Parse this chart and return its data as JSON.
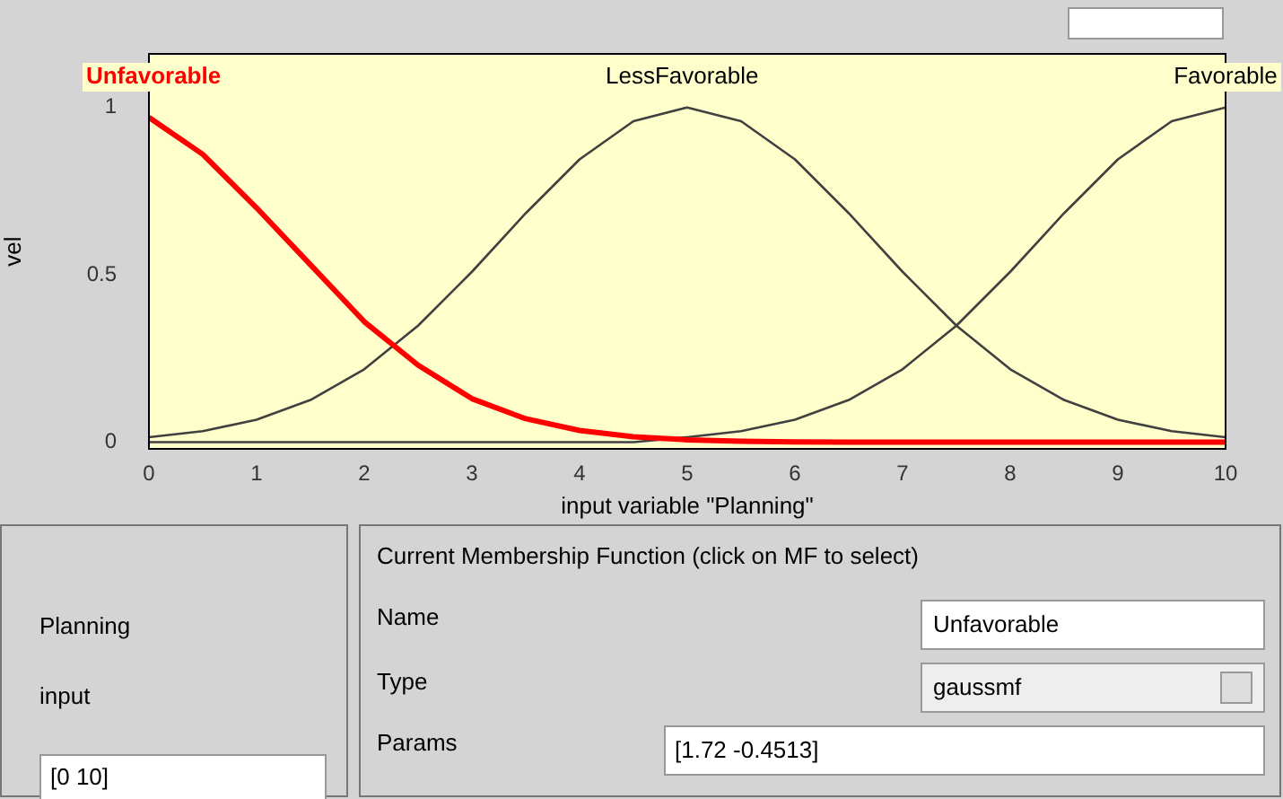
{
  "chart_data": {
    "type": "line",
    "xlabel": "input variable \"Planning\"",
    "ylabel": "vel",
    "x": [
      0,
      0.5,
      1,
      1.5,
      2,
      2.5,
      3,
      3.5,
      4,
      4.5,
      5,
      5.5,
      6,
      6.5,
      7,
      7.5,
      8,
      8.5,
      9,
      9.5,
      10
    ],
    "series": [
      {
        "name": "Unfavorable",
        "color": "#ff0000",
        "values": [
          0.97,
          0.86,
          0.7,
          0.53,
          0.36,
          0.23,
          0.13,
          0.07,
          0.035,
          0.016,
          0.007,
          0.003,
          0.001,
          0,
          0,
          0,
          0,
          0,
          0,
          0,
          0
        ]
      },
      {
        "name": "LessFavorable",
        "color": "#404040",
        "values": [
          0.015,
          0.033,
          0.067,
          0.126,
          0.218,
          0.348,
          0.509,
          0.684,
          0.845,
          0.959,
          1,
          0.959,
          0.845,
          0.684,
          0.509,
          0.348,
          0.218,
          0.126,
          0.067,
          0.033,
          0.015
        ]
      },
      {
        "name": "Favorable",
        "color": "#404040",
        "values": [
          0,
          0,
          0,
          0,
          0,
          0,
          0,
          0,
          0,
          0,
          0.015,
          0.033,
          0.067,
          0.126,
          0.218,
          0.348,
          0.509,
          0.684,
          0.845,
          0.959,
          1
        ]
      }
    ],
    "xlim": [
      0,
      10
    ],
    "xticks": [
      0,
      1,
      2,
      3,
      4,
      5,
      6,
      7,
      8,
      9,
      10
    ],
    "ylim": [
      -0.02,
      1.16
    ],
    "yticks": [
      0,
      0.5,
      1
    ],
    "grid": false,
    "legend": false,
    "marker": "none",
    "line_style": "solid",
    "annotations": [
      "Current Membership Function (click on MF to select)",
      "Name",
      "Unfavorable",
      "Type",
      "gaussmf",
      "Params",
      "[1.72 -0.4513]",
      "Planning",
      "input",
      "[0 10]"
    ]
  }
}
